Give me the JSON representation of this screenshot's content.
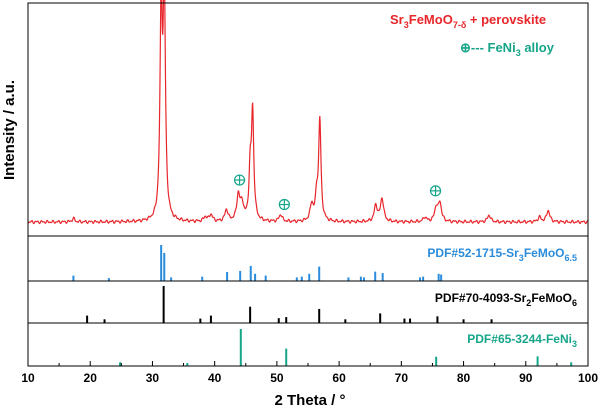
{
  "chart_data": {
    "type": "line",
    "xlabel": "2 Theta / °",
    "ylabel": "Intensity / a.u.",
    "xlim": [
      10,
      100
    ],
    "x_ticks": [
      "10",
      "20",
      "30",
      "40",
      "50",
      "60",
      "70",
      "80",
      "90",
      "100"
    ],
    "colors": {
      "pattern": "#e8262b",
      "perovskite": "#2a8cdb",
      "sr2": "#000000",
      "feni3": "#17a589",
      "axes": "#000000"
    },
    "legend": {
      "main_base": "Sr",
      "main_sub1": "3",
      "main_mid": "FeMoO",
      "main_sub2": "7-δ",
      "main_tail": " + perovskite",
      "alloy_marker": "⊕",
      "alloy_text": "--- FeNi",
      "alloy_sub": "3",
      "alloy_tail": " alloy"
    },
    "pattern": {
      "baseline": 0.06,
      "peaks": [
        {
          "x": 17.3,
          "h": 0.015,
          "w": 0.25
        },
        {
          "x": 31.4,
          "h": 0.88,
          "w": 0.22
        },
        {
          "x": 31.9,
          "h": 0.97,
          "w": 0.22
        },
        {
          "x": 38.5,
          "h": 0.02,
          "w": 0.3
        },
        {
          "x": 39.4,
          "h": 0.03,
          "w": 0.3
        },
        {
          "x": 41.9,
          "h": 0.05,
          "w": 0.3
        },
        {
          "x": 43.8,
          "h": 0.11,
          "w": 0.3
        },
        {
          "x": 44.4,
          "h": 0.07,
          "w": 0.3
        },
        {
          "x": 45.7,
          "h": 0.2,
          "w": 0.22
        },
        {
          "x": 46.1,
          "h": 0.46,
          "w": 0.22
        },
        {
          "x": 50.6,
          "h": 0.03,
          "w": 0.3
        },
        {
          "x": 55.6,
          "h": 0.07,
          "w": 0.3
        },
        {
          "x": 56.4,
          "h": 0.1,
          "w": 0.25
        },
        {
          "x": 56.9,
          "h": 0.43,
          "w": 0.22
        },
        {
          "x": 65.9,
          "h": 0.07,
          "w": 0.3
        },
        {
          "x": 66.9,
          "h": 0.1,
          "w": 0.3
        },
        {
          "x": 73.8,
          "h": 0.02,
          "w": 0.3
        },
        {
          "x": 75.6,
          "h": 0.06,
          "w": 0.3
        },
        {
          "x": 76.2,
          "h": 0.08,
          "w": 0.3
        },
        {
          "x": 84.1,
          "h": 0.03,
          "w": 0.3
        },
        {
          "x": 92.2,
          "h": 0.02,
          "w": 0.3
        },
        {
          "x": 93.6,
          "h": 0.05,
          "w": 0.3
        }
      ]
    },
    "alloy_markers": [
      44.0,
      51.2,
      75.5
    ],
    "references": [
      {
        "label_base": "PDF#52-1715-Sr",
        "label_sub1": "3",
        "label_mid": "FeMoO",
        "label_sub2": "6.5",
        "sticks": [
          {
            "x": 17.3,
            "h": 0.15
          },
          {
            "x": 23.0,
            "h": 0.08
          },
          {
            "x": 31.4,
            "h": 1.0
          },
          {
            "x": 31.9,
            "h": 0.78
          },
          {
            "x": 33.0,
            "h": 0.1
          },
          {
            "x": 38.0,
            "h": 0.12
          },
          {
            "x": 42.0,
            "h": 0.25
          },
          {
            "x": 44.1,
            "h": 0.28
          },
          {
            "x": 45.8,
            "h": 0.42
          },
          {
            "x": 46.5,
            "h": 0.2
          },
          {
            "x": 48.2,
            "h": 0.15
          },
          {
            "x": 53.2,
            "h": 0.1
          },
          {
            "x": 54.0,
            "h": 0.12
          },
          {
            "x": 55.2,
            "h": 0.2
          },
          {
            "x": 56.8,
            "h": 0.4
          },
          {
            "x": 61.5,
            "h": 0.1
          },
          {
            "x": 63.5,
            "h": 0.12
          },
          {
            "x": 64.0,
            "h": 0.1
          },
          {
            "x": 65.8,
            "h": 0.26
          },
          {
            "x": 67.0,
            "h": 0.22
          },
          {
            "x": 73.0,
            "h": 0.1
          },
          {
            "x": 73.5,
            "h": 0.12
          },
          {
            "x": 76.0,
            "h": 0.2
          },
          {
            "x": 76.4,
            "h": 0.18
          }
        ]
      },
      {
        "label_base": "PDF#70-4093-Sr",
        "label_sub1": "2",
        "label_mid": "FeMoO",
        "label_sub2": "6",
        "sticks": [
          {
            "x": 19.5,
            "h": 0.2
          },
          {
            "x": 22.3,
            "h": 0.1
          },
          {
            "x": 31.8,
            "h": 1.0
          },
          {
            "x": 37.7,
            "h": 0.12
          },
          {
            "x": 39.4,
            "h": 0.2
          },
          {
            "x": 45.7,
            "h": 0.44
          },
          {
            "x": 50.3,
            "h": 0.13
          },
          {
            "x": 51.5,
            "h": 0.16
          },
          {
            "x": 56.8,
            "h": 0.38
          },
          {
            "x": 61.0,
            "h": 0.1
          },
          {
            "x": 66.6,
            "h": 0.26
          },
          {
            "x": 70.5,
            "h": 0.12
          },
          {
            "x": 71.4,
            "h": 0.12
          },
          {
            "x": 75.8,
            "h": 0.18
          },
          {
            "x": 80.0,
            "h": 0.1
          },
          {
            "x": 84.5,
            "h": 0.1
          }
        ]
      },
      {
        "label_base": "PDF#65-3244-FeNi",
        "label_sub1": "3",
        "label_mid": "",
        "label_sub2": "",
        "sticks": [
          {
            "x": 24.8,
            "h": 0.1
          },
          {
            "x": 35.6,
            "h": 0.08
          },
          {
            "x": 44.2,
            "h": 1.0
          },
          {
            "x": 51.5,
            "h": 0.47
          },
          {
            "x": 75.6,
            "h": 0.25
          },
          {
            "x": 91.9,
            "h": 0.26
          },
          {
            "x": 97.3,
            "h": 0.1
          }
        ]
      }
    ]
  }
}
